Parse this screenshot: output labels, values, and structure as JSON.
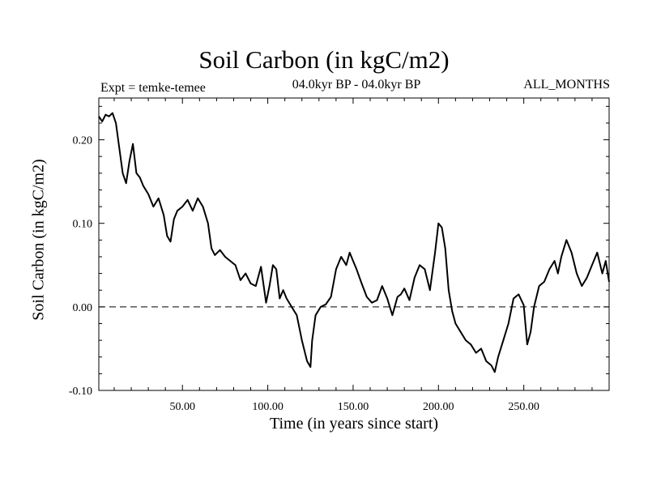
{
  "header": {
    "title": "Soil Carbon (in kgC/m2)",
    "expt": "Expt = temke-temee",
    "period": "04.0kyr BP - 04.0kyr BP",
    "months": "ALL_MONTHS"
  },
  "chart_data": {
    "type": "line",
    "title": "Soil Carbon (in kgC/m2)",
    "xlabel": "Time (in years since start)",
    "ylabel": "Soil Carbon (in kgC/m2)",
    "xlim": [
      1,
      300
    ],
    "ylim": [
      -0.1,
      0.25
    ],
    "xticks": [
      50,
      100,
      150,
      200,
      250
    ],
    "xtick_labels": [
      "50.00",
      "100.00",
      "150.00",
      "200.00",
      "250.00"
    ],
    "yticks": [
      -0.1,
      0.0,
      0.1,
      0.2
    ],
    "ytick_labels": [
      "-0.10",
      "0.00",
      "0.10",
      "0.20"
    ],
    "reference_line": {
      "y": 0.0,
      "style": "dashed"
    },
    "series": [
      {
        "color": "#000000",
        "x": [
          1,
          3,
          5,
          7,
          9,
          11,
          13,
          15,
          17,
          19,
          21,
          23,
          25,
          27,
          30,
          33,
          36,
          39,
          41,
          43,
          45,
          47,
          50,
          53,
          56,
          59,
          62,
          65,
          67,
          69,
          72,
          75,
          78,
          81,
          84,
          87,
          90,
          93,
          96,
          99,
          101,
          103,
          105,
          107,
          109,
          111,
          114,
          117,
          120,
          123,
          125,
          126,
          128,
          131,
          134,
          137,
          140,
          143,
          146,
          148,
          150,
          152,
          155,
          158,
          161,
          164,
          167,
          170,
          173,
          176,
          178,
          180,
          183,
          186,
          189,
          192,
          195,
          198,
          200,
          202,
          204,
          206,
          208,
          210,
          213,
          216,
          219,
          222,
          225,
          228,
          231,
          233,
          235,
          238,
          241,
          244,
          247,
          250,
          252,
          254,
          256,
          259,
          262,
          265,
          268,
          270,
          272,
          275,
          278,
          281,
          284,
          287,
          290,
          293,
          296,
          298,
          300
        ],
        "y": [
          0.228,
          0.222,
          0.23,
          0.228,
          0.232,
          0.22,
          0.19,
          0.16,
          0.148,
          0.175,
          0.195,
          0.16,
          0.155,
          0.145,
          0.135,
          0.12,
          0.13,
          0.11,
          0.085,
          0.078,
          0.105,
          0.115,
          0.12,
          0.128,
          0.115,
          0.13,
          0.12,
          0.1,
          0.07,
          0.062,
          0.068,
          0.06,
          0.055,
          0.05,
          0.032,
          0.04,
          0.028,
          0.025,
          0.048,
          0.005,
          0.025,
          0.05,
          0.045,
          0.01,
          0.02,
          0.01,
          0.0,
          -0.01,
          -0.04,
          -0.065,
          -0.072,
          -0.04,
          -0.01,
          0.0,
          0.003,
          0.012,
          0.045,
          0.06,
          0.05,
          0.065,
          0.055,
          0.045,
          0.028,
          0.012,
          0.005,
          0.008,
          0.025,
          0.01,
          -0.01,
          0.012,
          0.015,
          0.022,
          0.008,
          0.035,
          0.05,
          0.045,
          0.02,
          0.065,
          0.1,
          0.095,
          0.07,
          0.02,
          -0.005,
          -0.02,
          -0.03,
          -0.04,
          -0.045,
          -0.055,
          -0.05,
          -0.065,
          -0.07,
          -0.078,
          -0.06,
          -0.04,
          -0.02,
          0.01,
          0.015,
          0.002,
          -0.045,
          -0.03,
          0.0,
          0.025,
          0.03,
          0.045,
          0.055,
          0.04,
          0.06,
          0.08,
          0.065,
          0.04,
          0.025,
          0.035,
          0.05,
          0.065,
          0.04,
          0.055,
          0.03
        ]
      }
    ]
  }
}
